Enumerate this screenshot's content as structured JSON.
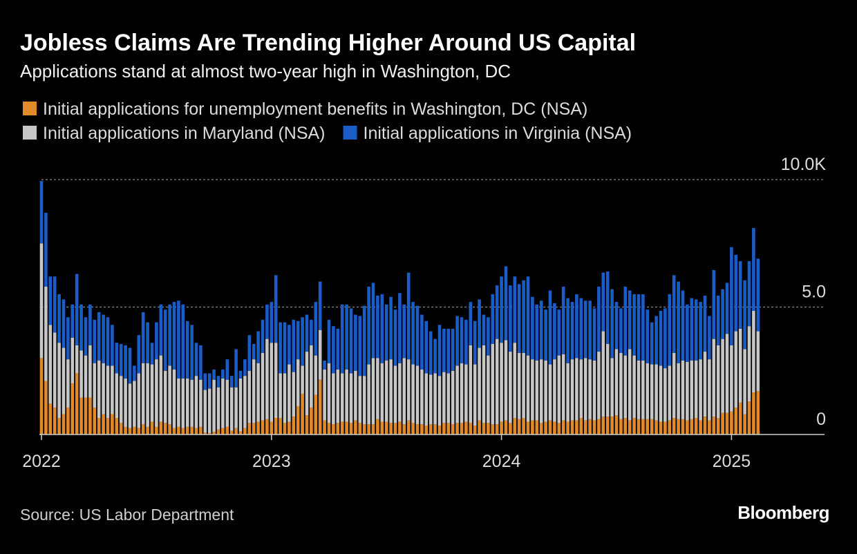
{
  "chart_data": {
    "type": "stacked_bar",
    "title": "Jobless Claims Are Trending Higher Around US Capital",
    "subtitle": "Applications stand at almost two-year high in Washington, DC",
    "source": "Source: US Labor Department",
    "brand": "Bloomberg",
    "categories": [
      "2022",
      null,
      null,
      null,
      null,
      null,
      null,
      null,
      null,
      null,
      null,
      null,
      null,
      null,
      null,
      null,
      null,
      null,
      null,
      null,
      null,
      null,
      null,
      null,
      null,
      null,
      null,
      null,
      null,
      null,
      null,
      null,
      null,
      null,
      null,
      null,
      null,
      null,
      null,
      null,
      null,
      null,
      null,
      null,
      null,
      null,
      null,
      null,
      null,
      null,
      null,
      null,
      "2023",
      null,
      null,
      null,
      null,
      null,
      null,
      null,
      null,
      null,
      null,
      null,
      null,
      null,
      null,
      null,
      null,
      null,
      null,
      null,
      null,
      null,
      null,
      null,
      null,
      null,
      null,
      null,
      null,
      null,
      null,
      null,
      null,
      null,
      null,
      null,
      null,
      null,
      null,
      null,
      null,
      null,
      null,
      null,
      null,
      null,
      null,
      null,
      null,
      null,
      null,
      null,
      "2024",
      null,
      null,
      null,
      null,
      null,
      null,
      null,
      null,
      null,
      null,
      null,
      null,
      null,
      null,
      null,
      null,
      null,
      null,
      null,
      null,
      null,
      null,
      null,
      null,
      null,
      null,
      null,
      null,
      null,
      null,
      null,
      null,
      null,
      null,
      null,
      null,
      null,
      null,
      null,
      null,
      null,
      null,
      null,
      null,
      null,
      null,
      null,
      null,
      null,
      null,
      null,
      "2025",
      null,
      null,
      null,
      null,
      null,
      null
    ],
    "series": [
      {
        "name": "Initial applications for unemployment benefits in Washington, DC (NSA)",
        "color": "#e08a2a",
        "values": [
          3.0,
          2.1,
          1.2,
          1.05,
          0.65,
          0.8,
          1.05,
          2.0,
          2.4,
          1.45,
          1.45,
          1.45,
          1.05,
          0.65,
          0.8,
          0.65,
          0.8,
          0.65,
          0.45,
          0.3,
          0.25,
          0.3,
          0.25,
          0.4,
          0.3,
          0.5,
          0.3,
          0.5,
          0.45,
          0.4,
          0.25,
          0.3,
          0.25,
          0.3,
          0.3,
          0.25,
          0.3,
          0.08,
          0.05,
          0.1,
          0.2,
          0.25,
          0.3,
          0.15,
          0.25,
          0.12,
          0.25,
          0.45,
          0.45,
          0.5,
          0.55,
          0.6,
          0.5,
          0.65,
          0.65,
          0.45,
          0.5,
          0.7,
          1.1,
          1.6,
          0.75,
          1.05,
          1.55,
          2.15,
          0.55,
          0.45,
          0.4,
          0.45,
          0.5,
          0.5,
          0.45,
          0.55,
          0.45,
          0.4,
          0.4,
          0.4,
          0.6,
          0.5,
          0.5,
          0.45,
          0.45,
          0.5,
          0.4,
          0.55,
          0.45,
          0.4,
          0.4,
          0.35,
          0.4,
          0.4,
          0.35,
          0.45,
          0.45,
          0.4,
          0.45,
          0.45,
          0.5,
          0.45,
          0.35,
          0.55,
          0.45,
          0.45,
          0.4,
          0.4,
          0.5,
          0.55,
          0.45,
          0.65,
          0.6,
          0.65,
          0.5,
          0.55,
          0.55,
          0.45,
          0.5,
          0.55,
          0.5,
          0.45,
          0.55,
          0.5,
          0.55,
          0.55,
          0.65,
          0.55,
          0.6,
          0.55,
          0.6,
          0.7,
          0.7,
          0.7,
          0.75,
          0.6,
          0.65,
          0.55,
          0.65,
          0.6,
          0.6,
          0.6,
          0.6,
          0.55,
          0.5,
          0.5,
          0.55,
          0.65,
          0.6,
          0.6,
          0.55,
          0.6,
          0.65,
          0.55,
          0.7,
          0.55,
          0.7,
          0.65,
          0.85,
          0.85,
          0.9,
          1.05,
          1.25,
          0.8,
          1.3,
          1.65,
          1.7
        ]
      },
      {
        "name": "Initial applications in Maryland (NSA)",
        "color": "#c6c6c6",
        "values": [
          4.5,
          3.7,
          3.1,
          2.95,
          2.95,
          2.6,
          1.9,
          1.8,
          1.1,
          1.85,
          1.65,
          2.05,
          1.75,
          2.25,
          2.0,
          2.05,
          1.9,
          1.75,
          1.85,
          1.9,
          1.75,
          1.8,
          2.15,
          2.4,
          2.5,
          2.25,
          2.65,
          2.6,
          2.05,
          2.3,
          2.3,
          1.9,
          1.95,
          1.9,
          1.85,
          2.05,
          1.85,
          1.67,
          1.75,
          2.05,
          1.65,
          1.95,
          1.85,
          1.7,
          1.6,
          2.08,
          2.05,
          2.05,
          2.5,
          2.3,
          2.65,
          3.15,
          3.1,
          2.95,
          1.75,
          1.95,
          2.25,
          1.75,
          1.85,
          1.1,
          2.5,
          2.45,
          1.55,
          1.95,
          2.0,
          2.35,
          2.0,
          2.1,
          1.9,
          2.05,
          1.95,
          1.95,
          1.85,
          1.9,
          2.35,
          2.6,
          2.4,
          2.3,
          2.4,
          2.5,
          2.25,
          2.3,
          2.6,
          2.4,
          2.3,
          2.3,
          2.15,
          2.05,
          1.95,
          2.0,
          1.95,
          2.0,
          1.95,
          2.1,
          2.25,
          2.35,
          2.25,
          3.05,
          2.4,
          2.85,
          3.05,
          2.65,
          3.15,
          3.35,
          3.1,
          3.15,
          2.8,
          2.95,
          2.6,
          2.55,
          2.6,
          2.4,
          2.35,
          2.5,
          2.4,
          2.2,
          2.45,
          2.65,
          2.6,
          2.3,
          2.4,
          2.45,
          2.3,
          2.45,
          2.35,
          2.35,
          2.65,
          3.35,
          2.85,
          2.3,
          2.6,
          2.6,
          2.45,
          2.8,
          2.45,
          2.3,
          2.3,
          2.2,
          2.15,
          2.2,
          2.2,
          2.1,
          2.15,
          2.55,
          2.2,
          2.3,
          2.3,
          2.3,
          2.25,
          2.4,
          2.55,
          2.4,
          3.05,
          2.85,
          2.9,
          3.1,
          2.6,
          3.0,
          2.9,
          2.55,
          2.95,
          3.2,
          2.35
        ]
      },
      {
        "name": "Initial applications in Virginia (NSA)",
        "color": "#1a5cc8",
        "values": [
          2.45,
          2.9,
          1.9,
          2.2,
          1.9,
          1.9,
          1.65,
          1.3,
          2.8,
          1.8,
          1.5,
          1.6,
          1.7,
          1.9,
          1.9,
          1.9,
          1.6,
          1.2,
          1.25,
          1.3,
          1.4,
          0.6,
          1.5,
          2.0,
          1.6,
          0.85,
          1.45,
          2.0,
          2.4,
          2.4,
          2.65,
          3.05,
          2.9,
          2.25,
          2.15,
          1.3,
          1.35,
          0.65,
          0.6,
          0.4,
          0.45,
          0.35,
          0.8,
          0.45,
          1.5,
          0.3,
          0.65,
          1.4,
          0.6,
          1.25,
          1.3,
          1.35,
          1.6,
          2.65,
          2.0,
          2.0,
          1.55,
          2.05,
          1.5,
          1.9,
          1.45,
          1.0,
          2.1,
          1.9,
          0.35,
          1.7,
          1.85,
          1.6,
          2.7,
          2.55,
          2.55,
          2.2,
          2.35,
          2.75,
          3.05,
          2.95,
          2.45,
          2.7,
          2.2,
          2.45,
          2.2,
          2.75,
          2.1,
          3.4,
          2.45,
          2.35,
          2.15,
          2.05,
          1.7,
          1.35,
          2.0,
          1.7,
          1.75,
          1.65,
          1.95,
          1.8,
          1.75,
          1.7,
          1.7,
          1.9,
          1.2,
          1.5,
          1.95,
          2.1,
          2.6,
          2.9,
          2.6,
          2.6,
          2.7,
          2.85,
          3.1,
          2.45,
          2.2,
          2.3,
          2.0,
          2.9,
          2.2,
          1.8,
          2.65,
          2.55,
          2.25,
          2.5,
          2.4,
          2.25,
          2.3,
          2.05,
          2.55,
          2.3,
          2.85,
          2.7,
          1.85,
          1.75,
          2.7,
          2.3,
          2.4,
          2.6,
          2.6,
          2.1,
          1.65,
          1.9,
          2.15,
          2.35,
          2.8,
          3.05,
          3.2,
          2.75,
          2.25,
          2.45,
          2.4,
          2.25,
          2.2,
          1.7,
          2.7,
          1.95,
          1.95,
          2.0,
          3.85,
          3.0,
          2.65,
          2.7,
          2.55,
          3.25,
          2.85
        ]
      }
    ],
    "ylim": [
      0,
      10
    ],
    "yticks": [
      0,
      {
        "value": 5,
        "label": "5.0"
      },
      {
        "value": 10,
        "label": "10.0K"
      }
    ],
    "grid": true
  }
}
